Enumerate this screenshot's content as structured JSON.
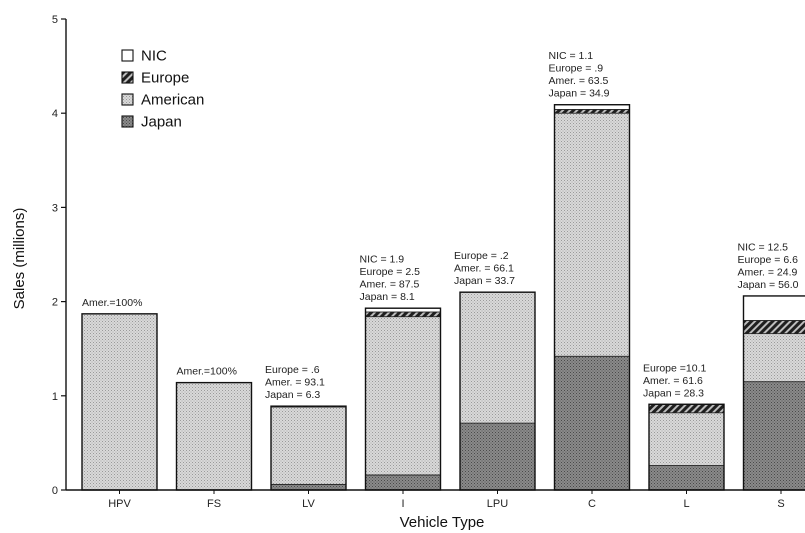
{
  "chart_data": {
    "type": "bar",
    "stacked": true,
    "xlabel": "Vehicle Type",
    "ylabel": "Sales (millions)",
    "ylim": [
      0,
      5
    ],
    "yticks": [
      "0",
      "1",
      "2",
      "3",
      "4",
      "5"
    ],
    "categories": [
      "HPV",
      "FS",
      "LV",
      "I",
      "LPU",
      "C",
      "L",
      "S"
    ],
    "series": [
      {
        "name": "Japan",
        "values": [
          0,
          0,
          0.06,
          0.16,
          0.71,
          1.42,
          0.26,
          1.15
        ]
      },
      {
        "name": "American",
        "values": [
          1.87,
          1.14,
          0.82,
          1.68,
          1.39,
          2.58,
          0.56,
          0.51
        ]
      },
      {
        "name": "Europe",
        "values": [
          0,
          0,
          0.01,
          0.05,
          0.0,
          0.04,
          0.09,
          0.14
        ]
      },
      {
        "name": "NIC",
        "values": [
          0,
          0,
          0,
          0.04,
          0,
          0.05,
          0,
          0.26
        ]
      }
    ],
    "legend": {
      "position": "top-left",
      "entries": [
        "NIC",
        "Europe",
        "American",
        "Japan"
      ]
    },
    "colors": {
      "NIC": "#ffffff",
      "Europe": "#3f3f3f",
      "American": "#d7d7d7",
      "Japan": "#8c8c8c"
    },
    "annotations": [
      {
        "category": "HPV",
        "lines": [
          "Amer.=100%"
        ]
      },
      {
        "category": "FS",
        "lines": [
          "Amer.=100%"
        ]
      },
      {
        "category": "LV",
        "lines": [
          "Europe =   .6",
          "Amer. =  93.1",
          "Japan =   6.3"
        ]
      },
      {
        "category": "I",
        "lines": [
          "NIC =      1.9",
          "Europe = 2.5",
          "Amer. = 87.5",
          "Japan =   8.1"
        ]
      },
      {
        "category": "LPU",
        "lines": [
          "Europe =   .2",
          "Amer. = 66.1",
          "Japan = 33.7"
        ]
      },
      {
        "category": "C",
        "lines": [
          "NIC =      1.1",
          "Europe =   .9",
          "Amer. = 63.5",
          "Japan = 34.9"
        ]
      },
      {
        "category": "L",
        "lines": [
          "Europe =10.1",
          "Amer. = 61.6",
          "Japan = 28.3"
        ]
      },
      {
        "category": "S",
        "lines": [
          "NIC =    12.5",
          "Europe = 6.6",
          "Amer. = 24.9",
          "Japan = 56.0"
        ]
      }
    ]
  }
}
